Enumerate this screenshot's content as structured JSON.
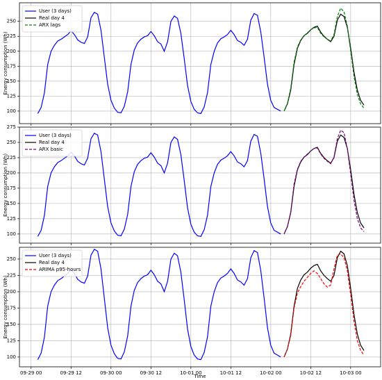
{
  "chart_data": [
    {
      "type": "line",
      "y_label": "Energy consumption (Wh)",
      "grid": true,
      "legend": "upper left",
      "xlim": [
        -3.5,
        105
      ],
      "xticks": [
        0,
        12,
        24,
        36,
        48,
        60,
        72,
        84,
        96
      ],
      "ylim": [
        79,
        281
      ],
      "yticks": [
        100,
        125,
        150,
        175,
        200,
        225,
        250
      ],
      "series": [
        {
          "name": "User (3 days)",
          "color": "#0000ff",
          "linestyle": "solid",
          "x": [
            2,
            3,
            4,
            5,
            6,
            7,
            8,
            9,
            10,
            11,
            12,
            13,
            14,
            15,
            16,
            17,
            18,
            19,
            20,
            21,
            22,
            23,
            24,
            25,
            26,
            27,
            28,
            29,
            30,
            31,
            32,
            33,
            34,
            35,
            36,
            37,
            38,
            39,
            40,
            41,
            42,
            43,
            44,
            45,
            46,
            47,
            48,
            49,
            50,
            51,
            52,
            53,
            54,
            55,
            56,
            57,
            58,
            59,
            60,
            61,
            62,
            63,
            64,
            65,
            66,
            67,
            68,
            69,
            70,
            71,
            72,
            73,
            74,
            75
          ],
          "values": [
            96,
            106,
            130,
            178,
            200,
            210,
            217,
            220,
            224,
            228,
            234,
            228,
            219,
            215,
            213,
            224,
            256,
            265,
            262,
            235,
            190,
            145,
            118,
            105,
            98,
            97,
            108,
            132,
            178,
            202,
            214,
            220,
            224,
            226,
            233,
            226,
            216,
            212,
            200,
            216,
            250,
            259,
            255,
            230,
            188,
            143,
            116,
            103,
            97,
            96,
            107,
            131,
            178,
            200,
            214,
            221,
            224,
            228,
            235,
            228,
            218,
            215,
            210,
            220,
            252,
            263,
            260,
            232,
            190,
            145,
            118,
            106,
            103,
            100
          ]
        },
        {
          "name": "Real day 4",
          "color": "#000000",
          "linestyle": "solid",
          "x": [
            76,
            77,
            78,
            79,
            80,
            81,
            82,
            83,
            84,
            85,
            86,
            87,
            88,
            89,
            90,
            91,
            92,
            93,
            94,
            95,
            96,
            97,
            98,
            99,
            100
          ],
          "values": [
            100,
            112,
            135,
            178,
            205,
            218,
            226,
            230,
            236,
            240,
            242,
            232,
            225,
            220,
            216,
            225,
            252,
            262,
            258,
            240,
            205,
            165,
            135,
            118,
            110
          ]
        },
        {
          "name": "ARX lags",
          "color": "#008000",
          "linestyle": "dashed",
          "x": [
            76,
            77,
            78,
            79,
            80,
            81,
            82,
            83,
            84,
            85,
            86,
            87,
            88,
            89,
            90,
            91,
            92,
            93,
            94,
            95,
            96,
            97,
            98,
            99,
            100
          ],
          "values": [
            100,
            113,
            138,
            182,
            207,
            219,
            226,
            231,
            236,
            239,
            240,
            230,
            224,
            220,
            217,
            228,
            258,
            272,
            266,
            242,
            200,
            158,
            128,
            112,
            105
          ]
        }
      ]
    },
    {
      "type": "line",
      "y_label": "Energy consumption (Wh)",
      "grid": true,
      "legend": "upper left",
      "xlim": [
        -3.5,
        105
      ],
      "xticks": [
        0,
        12,
        24,
        36,
        48,
        60,
        72,
        84,
        96
      ],
      "ylim": [
        85,
        275
      ],
      "yticks": [
        100,
        125,
        150,
        175,
        200,
        225,
        250,
        275
      ],
      "series": [
        {
          "name": "User (3 days)",
          "color": "#0000ff",
          "linestyle": "solid",
          "x": [
            2,
            3,
            4,
            5,
            6,
            7,
            8,
            9,
            10,
            11,
            12,
            13,
            14,
            15,
            16,
            17,
            18,
            19,
            20,
            21,
            22,
            23,
            24,
            25,
            26,
            27,
            28,
            29,
            30,
            31,
            32,
            33,
            34,
            35,
            36,
            37,
            38,
            39,
            40,
            41,
            42,
            43,
            44,
            45,
            46,
            47,
            48,
            49,
            50,
            51,
            52,
            53,
            54,
            55,
            56,
            57,
            58,
            59,
            60,
            61,
            62,
            63,
            64,
            65,
            66,
            67,
            68,
            69,
            70,
            71,
            72,
            73,
            74,
            75
          ],
          "values": [
            96,
            106,
            130,
            178,
            200,
            210,
            217,
            220,
            224,
            228,
            234,
            228,
            219,
            215,
            213,
            224,
            256,
            265,
            262,
            235,
            190,
            145,
            118,
            105,
            98,
            97,
            108,
            132,
            178,
            202,
            214,
            220,
            224,
            226,
            233,
            226,
            216,
            212,
            200,
            216,
            250,
            259,
            255,
            230,
            188,
            143,
            116,
            103,
            97,
            96,
            107,
            131,
            178,
            200,
            214,
            221,
            224,
            228,
            235,
            228,
            218,
            215,
            210,
            220,
            252,
            263,
            260,
            232,
            190,
            145,
            118,
            106,
            103,
            100
          ]
        },
        {
          "name": "Real day 4",
          "color": "#000000",
          "linestyle": "solid",
          "x": [
            76,
            77,
            78,
            79,
            80,
            81,
            82,
            83,
            84,
            85,
            86,
            87,
            88,
            89,
            90,
            91,
            92,
            93,
            94,
            95,
            96,
            97,
            98,
            99,
            100
          ],
          "values": [
            100,
            112,
            135,
            178,
            205,
            218,
            226,
            230,
            236,
            240,
            242,
            232,
            225,
            220,
            216,
            225,
            252,
            262,
            258,
            240,
            205,
            165,
            135,
            118,
            110
          ]
        },
        {
          "name": "ARX basic",
          "color": "#800080",
          "linestyle": "dashed",
          "x": [
            76,
            77,
            78,
            79,
            80,
            81,
            82,
            83,
            84,
            85,
            86,
            87,
            88,
            89,
            90,
            91,
            92,
            93,
            94,
            95,
            96,
            97,
            98,
            99,
            100
          ],
          "values": [
            100,
            112,
            136,
            182,
            206,
            219,
            226,
            231,
            236,
            240,
            241,
            231,
            224,
            219,
            215,
            226,
            256,
            270,
            266,
            240,
            198,
            155,
            125,
            110,
            104
          ]
        }
      ]
    },
    {
      "type": "line",
      "y_label": "Energy consumption (Wh)",
      "x_label": "Time",
      "grid": true,
      "legend": "upper left",
      "xlim": [
        -3.5,
        105
      ],
      "xticks": [
        {
          "value": 0,
          "label": "09-29 00"
        },
        {
          "value": 12,
          "label": "09-29 12"
        },
        {
          "value": 24,
          "label": "09-30 00"
        },
        {
          "value": 36,
          "label": "09-30 12"
        },
        {
          "value": 48,
          "label": "10-01 00"
        },
        {
          "value": 60,
          "label": "10-01 12"
        },
        {
          "value": 72,
          "label": "10-02 00"
        },
        {
          "value": 84,
          "label": "10-02 12"
        },
        {
          "value": 96,
          "label": "10-03 00"
        }
      ],
      "ylim": [
        85,
        268
      ],
      "yticks": [
        100,
        125,
        150,
        175,
        200,
        225,
        250
      ],
      "series": [
        {
          "name": "User (3 days)",
          "color": "#0000ff",
          "linestyle": "solid",
          "x": [
            2,
            3,
            4,
            5,
            6,
            7,
            8,
            9,
            10,
            11,
            12,
            13,
            14,
            15,
            16,
            17,
            18,
            19,
            20,
            21,
            22,
            23,
            24,
            25,
            26,
            27,
            28,
            29,
            30,
            31,
            32,
            33,
            34,
            35,
            36,
            37,
            38,
            39,
            40,
            41,
            42,
            43,
            44,
            45,
            46,
            47,
            48,
            49,
            50,
            51,
            52,
            53,
            54,
            55,
            56,
            57,
            58,
            59,
            60,
            61,
            62,
            63,
            64,
            65,
            66,
            67,
            68,
            69,
            70,
            71,
            72,
            73,
            74,
            75
          ],
          "values": [
            96,
            106,
            130,
            178,
            200,
            210,
            217,
            220,
            224,
            228,
            234,
            228,
            219,
            215,
            213,
            224,
            256,
            265,
            262,
            235,
            190,
            145,
            118,
            105,
            98,
            97,
            108,
            132,
            178,
            202,
            214,
            220,
            224,
            226,
            233,
            226,
            216,
            212,
            200,
            216,
            250,
            259,
            255,
            230,
            188,
            143,
            116,
            103,
            97,
            96,
            107,
            131,
            178,
            200,
            214,
            221,
            224,
            228,
            235,
            228,
            218,
            215,
            210,
            220,
            252,
            263,
            260,
            232,
            190,
            145,
            118,
            106,
            103,
            100
          ]
        },
        {
          "name": "Real day 4",
          "color": "#000000",
          "linestyle": "solid",
          "x": [
            76,
            77,
            78,
            79,
            80,
            81,
            82,
            83,
            84,
            85,
            86,
            87,
            88,
            89,
            90,
            91,
            92,
            93,
            94,
            95,
            96,
            97,
            98,
            99,
            100
          ],
          "values": [
            100,
            112,
            135,
            178,
            205,
            218,
            226,
            230,
            236,
            240,
            242,
            232,
            225,
            220,
            216,
            225,
            252,
            262,
            258,
            240,
            205,
            165,
            135,
            118,
            110
          ]
        },
        {
          "name": "ARIMA p95-hours",
          "color": "#ff0000",
          "linestyle": "dashed",
          "x": [
            76,
            77,
            78,
            79,
            80,
            81,
            82,
            83,
            84,
            85,
            86,
            87,
            88,
            89,
            90,
            91,
            92,
            93,
            94,
            95,
            96,
            97,
            98,
            99,
            100
          ],
          "values": [
            100,
            112,
            133,
            175,
            198,
            208,
            216,
            222,
            228,
            232,
            228,
            220,
            212,
            207,
            210,
            235,
            256,
            258,
            252,
            232,
            195,
            155,
            125,
            110,
            103
          ]
        }
      ]
    }
  ]
}
